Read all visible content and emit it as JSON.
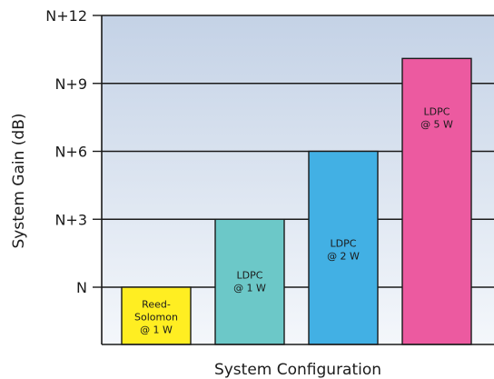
{
  "chart_data": {
    "type": "bar",
    "categories": [
      "Reed-Solomon @ 1 W",
      "LDPC @ 1 W",
      "LDPC @ 2 W",
      "LDPC @ 5 W"
    ],
    "bar_labels": [
      [
        "Reed-",
        "Solomon",
        "@ 1 W"
      ],
      [
        "LDPC",
        "@ 1 W"
      ],
      [
        "LDPC",
        "@ 2 W"
      ],
      [
        "LDPC",
        "@ 5 W"
      ]
    ],
    "values": [
      0,
      3,
      6,
      10.1
    ],
    "ylim": [
      -2.5,
      12
    ],
    "yticks": [
      0,
      3,
      6,
      9,
      12
    ],
    "ytick_labels": [
      "N",
      "N+3",
      "N+6",
      "N+9",
      "N+12"
    ],
    "xlabel": "System Configuration",
    "ylabel": "System Gain (dB)",
    "grid": true,
    "colors": [
      "#ffee22",
      "#6cc8c8",
      "#42b0e4",
      "#ec5aa0"
    ],
    "plot_gradient": [
      "#c4d2e6",
      "#f4f7fb"
    ]
  }
}
